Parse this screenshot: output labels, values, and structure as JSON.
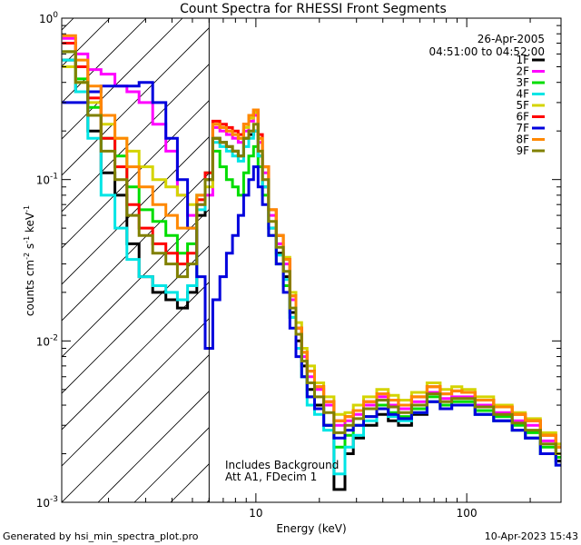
{
  "chart_data": {
    "type": "line",
    "title": "Count Spectra for RHESSI Front Segments",
    "date": "26-Apr-2005",
    "time_range": "04:51:00 to 04:52:00",
    "xlabel": "Energy (keV)",
    "ylabel_base": "counts cm",
    "ylabel_exp1": "-2",
    "ylabel_mid": " s",
    "ylabel_exp2": "-1",
    "ylabel_end": " keV",
    "ylabel_exp3": "-1",
    "x_scale": "log",
    "y_scale": "log",
    "xlim": [
      1.2,
      280
    ],
    "ylim": [
      0.001,
      1
    ],
    "x_tick_labels": [
      {
        "value": 10,
        "label": "10"
      },
      {
        "value": 100,
        "label": "100"
      }
    ],
    "y_tick_labels": [
      {
        "value": 1,
        "base": "10",
        "exp": "0"
      },
      {
        "value": 0.1,
        "base": "10",
        "exp": "-1"
      },
      {
        "value": 0.01,
        "base": "10",
        "exp": "-2"
      },
      {
        "value": 0.001,
        "base": "10",
        "exp": "-3"
      }
    ],
    "attenuator_boundary_keV": 6,
    "annotation_lines": [
      "Includes Background",
      "Att A1, FDecim 1"
    ],
    "legend_position": "top-right",
    "series": [
      {
        "name": "1F",
        "color": "#000000",
        "x": [
          1.3,
          1.5,
          1.7,
          2.0,
          2.3,
          2.6,
          3.0,
          3.5,
          4.0,
          4.5,
          5.0,
          5.5,
          6.0,
          6.5,
          7.0,
          7.5,
          8.0,
          8.5,
          9.0,
          9.5,
          10.0,
          10.5,
          11.0,
          12.0,
          13.0,
          14.0,
          15.0,
          16.0,
          17.0,
          18.0,
          20.0,
          22.0,
          25.0,
          28.0,
          30.0,
          35.0,
          40.0,
          45.0,
          50.0,
          60.0,
          70.0,
          80.0,
          90.0,
          100.0,
          120.0,
          150.0,
          180.0,
          200.0,
          250.0,
          280.0
        ],
        "y": [
          0.55,
          0.35,
          0.2,
          0.11,
          0.08,
          0.04,
          0.025,
          0.02,
          0.018,
          0.016,
          0.02,
          0.06,
          0.1,
          0.18,
          0.17,
          0.16,
          0.15,
          0.14,
          0.18,
          0.19,
          0.2,
          0.14,
          0.09,
          0.05,
          0.035,
          0.025,
          0.015,
          0.01,
          0.007,
          0.005,
          0.004,
          0.003,
          0.0012,
          0.002,
          0.0025,
          0.003,
          0.0035,
          0.0032,
          0.003,
          0.0035,
          0.0042,
          0.0038,
          0.004,
          0.004,
          0.0035,
          0.0032,
          0.0028,
          0.0025,
          0.002,
          0.0018
        ]
      },
      {
        "name": "2F",
        "color": "#ff00ff",
        "x": [
          1.3,
          1.5,
          1.7,
          2.0,
          2.3,
          2.6,
          3.0,
          3.5,
          4.0,
          4.5,
          5.0,
          5.5,
          6.0,
          6.5,
          7.0,
          7.5,
          8.0,
          8.5,
          9.0,
          9.5,
          10.0,
          10.5,
          11.0,
          12.0,
          13.0,
          14.0,
          15.0,
          16.0,
          17.0,
          18.0,
          20.0,
          22.0,
          25.0,
          28.0,
          30.0,
          35.0,
          40.0,
          45.0,
          50.0,
          60.0,
          70.0,
          80.0,
          90.0,
          100.0,
          120.0,
          150.0,
          180.0,
          200.0,
          250.0,
          280.0
        ],
        "y": [
          0.75,
          0.6,
          0.48,
          0.45,
          0.38,
          0.35,
          0.3,
          0.22,
          0.15,
          0.08,
          0.06,
          0.07,
          0.08,
          0.21,
          0.2,
          0.19,
          0.18,
          0.17,
          0.2,
          0.23,
          0.25,
          0.17,
          0.11,
          0.06,
          0.04,
          0.03,
          0.018,
          0.012,
          0.008,
          0.006,
          0.005,
          0.004,
          0.003,
          0.0032,
          0.0035,
          0.004,
          0.0045,
          0.004,
          0.0038,
          0.0042,
          0.0048,
          0.0044,
          0.0045,
          0.0045,
          0.004,
          0.0036,
          0.0032,
          0.003,
          0.0024,
          0.002
        ]
      },
      {
        "name": "3F",
        "color": "#00dd00",
        "x": [
          1.3,
          1.5,
          1.7,
          2.0,
          2.3,
          2.6,
          3.0,
          3.5,
          4.0,
          4.5,
          5.0,
          5.5,
          6.0,
          6.5,
          7.0,
          7.5,
          8.0,
          8.5,
          9.0,
          9.5,
          10.0,
          10.5,
          11.0,
          12.0,
          13.0,
          14.0,
          15.0,
          16.0,
          17.0,
          18.0,
          20.0,
          22.0,
          25.0,
          28.0,
          30.0,
          35.0,
          40.0,
          45.0,
          50.0,
          60.0,
          70.0,
          80.0,
          90.0,
          100.0,
          120.0,
          150.0,
          180.0,
          200.0,
          250.0,
          280.0
        ],
        "y": [
          0.62,
          0.42,
          0.28,
          0.18,
          0.14,
          0.09,
          0.065,
          0.055,
          0.045,
          0.035,
          0.04,
          0.08,
          0.11,
          0.15,
          0.12,
          0.1,
          0.09,
          0.08,
          0.11,
          0.14,
          0.16,
          0.12,
          0.08,
          0.045,
          0.03,
          0.022,
          0.014,
          0.009,
          0.006,
          0.0045,
          0.0038,
          0.003,
          0.0022,
          0.0026,
          0.003,
          0.0034,
          0.004,
          0.0036,
          0.0034,
          0.0038,
          0.0045,
          0.004,
          0.0042,
          0.0042,
          0.0037,
          0.0034,
          0.003,
          0.0027,
          0.0022,
          0.0019
        ]
      },
      {
        "name": "4F",
        "color": "#00e5e5",
        "x": [
          1.3,
          1.5,
          1.7,
          2.0,
          2.3,
          2.6,
          3.0,
          3.5,
          4.0,
          4.5,
          5.0,
          5.5,
          6.0,
          6.5,
          7.0,
          7.5,
          8.0,
          8.5,
          9.0,
          9.5,
          10.0,
          10.5,
          11.0,
          12.0,
          13.0,
          14.0,
          15.0,
          16.0,
          17.0,
          18.0,
          20.0,
          22.0,
          25.0,
          28.0,
          30.0,
          35.0,
          40.0,
          45.0,
          50.0,
          60.0,
          70.0,
          80.0,
          90.0,
          100.0,
          120.0,
          150.0,
          180.0,
          200.0,
          250.0,
          280.0
        ],
        "y": [
          0.55,
          0.35,
          0.18,
          0.08,
          0.05,
          0.032,
          0.025,
          0.022,
          0.02,
          0.018,
          0.022,
          0.065,
          0.1,
          0.17,
          0.16,
          0.15,
          0.14,
          0.13,
          0.16,
          0.18,
          0.2,
          0.14,
          0.09,
          0.05,
          0.034,
          0.024,
          0.014,
          0.009,
          0.006,
          0.004,
          0.0035,
          0.0028,
          0.0015,
          0.0022,
          0.0026,
          0.0032,
          0.0038,
          0.0034,
          0.0032,
          0.0036,
          0.0042,
          0.0038,
          0.004,
          0.004,
          0.0035,
          0.0032,
          0.0028,
          0.0025,
          0.002,
          0.0017
        ]
      },
      {
        "name": "5F",
        "color": "#d4d400",
        "x": [
          1.3,
          1.5,
          1.7,
          2.0,
          2.3,
          2.6,
          3.0,
          3.5,
          4.0,
          4.5,
          5.0,
          5.5,
          6.0,
          6.5,
          7.0,
          7.5,
          8.0,
          8.5,
          9.0,
          9.5,
          10.0,
          10.5,
          11.0,
          12.0,
          13.0,
          14.0,
          15.0,
          16.0,
          17.0,
          18.0,
          20.0,
          22.0,
          25.0,
          28.0,
          30.0,
          35.0,
          40.0,
          45.0,
          50.0,
          60.0,
          70.0,
          80.0,
          90.0,
          100.0,
          120.0,
          150.0,
          180.0,
          200.0,
          250.0,
          280.0
        ],
        "y": [
          0.5,
          0.4,
          0.3,
          0.22,
          0.18,
          0.15,
          0.12,
          0.1,
          0.09,
          0.08,
          0.07,
          0.075,
          0.09,
          0.22,
          0.21,
          0.2,
          0.19,
          0.18,
          0.21,
          0.24,
          0.26,
          0.18,
          0.12,
          0.065,
          0.045,
          0.033,
          0.02,
          0.013,
          0.009,
          0.007,
          0.0055,
          0.0045,
          0.0035,
          0.0036,
          0.004,
          0.0045,
          0.005,
          0.0046,
          0.0043,
          0.0048,
          0.0055,
          0.005,
          0.0052,
          0.005,
          0.0045,
          0.004,
          0.0036,
          0.0033,
          0.0027,
          0.0023
        ]
      },
      {
        "name": "6F",
        "color": "#ff0000",
        "x": [
          1.3,
          1.5,
          1.7,
          2.0,
          2.3,
          2.6,
          3.0,
          3.5,
          4.0,
          4.5,
          5.0,
          5.5,
          6.0,
          6.5,
          7.0,
          7.5,
          8.0,
          8.5,
          9.0,
          9.5,
          10.0,
          10.5,
          11.0,
          12.0,
          13.0,
          14.0,
          15.0,
          16.0,
          17.0,
          18.0,
          20.0,
          22.0,
          25.0,
          28.0,
          30.0,
          35.0,
          40.0,
          45.0,
          50.0,
          60.0,
          70.0,
          80.0,
          90.0,
          100.0,
          120.0,
          150.0,
          180.0,
          200.0,
          250.0,
          280.0
        ],
        "y": [
          0.7,
          0.5,
          0.32,
          0.18,
          0.12,
          0.07,
          0.05,
          0.04,
          0.035,
          0.03,
          0.035,
          0.075,
          0.11,
          0.23,
          0.22,
          0.21,
          0.2,
          0.19,
          0.22,
          0.25,
          0.27,
          0.19,
          0.12,
          0.065,
          0.045,
          0.032,
          0.019,
          0.012,
          0.0085,
          0.0065,
          0.0052,
          0.0042,
          0.0032,
          0.0034,
          0.0037,
          0.0042,
          0.0047,
          0.0043,
          0.004,
          0.0045,
          0.0052,
          0.0047,
          0.0049,
          0.0048,
          0.0043,
          0.0039,
          0.0035,
          0.0032,
          0.0026,
          0.0022
        ]
      },
      {
        "name": "7F",
        "color": "#0000dd",
        "x": [
          1.3,
          1.5,
          1.7,
          2.0,
          2.3,
          2.6,
          3.0,
          3.5,
          4.0,
          4.5,
          5.0,
          5.5,
          6.0,
          6.5,
          7.0,
          7.5,
          8.0,
          8.5,
          9.0,
          9.5,
          10.0,
          10.5,
          11.0,
          12.0,
          13.0,
          14.0,
          15.0,
          16.0,
          17.0,
          18.0,
          20.0,
          22.0,
          25.0,
          28.0,
          30.0,
          35.0,
          40.0,
          45.0,
          50.0,
          60.0,
          70.0,
          80.0,
          90.0,
          100.0,
          120.0,
          150.0,
          180.0,
          200.0,
          250.0,
          280.0
        ],
        "y": [
          0.3,
          0.3,
          0.35,
          0.38,
          0.38,
          0.38,
          0.4,
          0.3,
          0.18,
          0.1,
          0.05,
          0.025,
          0.009,
          0.018,
          0.025,
          0.035,
          0.045,
          0.06,
          0.08,
          0.1,
          0.12,
          0.09,
          0.07,
          0.045,
          0.03,
          0.02,
          0.012,
          0.008,
          0.006,
          0.0045,
          0.0038,
          0.003,
          0.0025,
          0.0028,
          0.003,
          0.0034,
          0.0038,
          0.0035,
          0.0033,
          0.0036,
          0.0042,
          0.0038,
          0.004,
          0.004,
          0.0035,
          0.0032,
          0.0028,
          0.0025,
          0.002,
          0.0017
        ]
      },
      {
        "name": "8F",
        "color": "#ff8800",
        "x": [
          1.3,
          1.5,
          1.7,
          2.0,
          2.3,
          2.6,
          3.0,
          3.5,
          4.0,
          4.5,
          5.0,
          5.5,
          6.0,
          6.5,
          7.0,
          7.5,
          8.0,
          8.5,
          9.0,
          9.5,
          10.0,
          10.5,
          11.0,
          12.0,
          13.0,
          14.0,
          15.0,
          16.0,
          17.0,
          18.0,
          20.0,
          22.0,
          25.0,
          28.0,
          30.0,
          35.0,
          40.0,
          45.0,
          50.0,
          60.0,
          70.0,
          80.0,
          90.0,
          100.0,
          120.0,
          150.0,
          180.0,
          200.0,
          250.0,
          280.0
        ],
        "y": [
          0.78,
          0.55,
          0.38,
          0.25,
          0.18,
          0.12,
          0.09,
          0.07,
          0.06,
          0.05,
          0.05,
          0.08,
          0.1,
          0.22,
          0.21,
          0.2,
          0.19,
          0.18,
          0.22,
          0.25,
          0.27,
          0.18,
          0.12,
          0.065,
          0.045,
          0.032,
          0.019,
          0.012,
          0.0085,
          0.0065,
          0.0052,
          0.0042,
          0.0032,
          0.0034,
          0.0037,
          0.0042,
          0.0047,
          0.0043,
          0.004,
          0.0045,
          0.0052,
          0.0047,
          0.0049,
          0.0048,
          0.0043,
          0.0039,
          0.0035,
          0.0032,
          0.0026,
          0.0022
        ]
      },
      {
        "name": "9F",
        "color": "#808000",
        "x": [
          1.3,
          1.5,
          1.7,
          2.0,
          2.3,
          2.6,
          3.0,
          3.5,
          4.0,
          4.5,
          5.0,
          5.5,
          6.0,
          6.5,
          7.0,
          7.5,
          8.0,
          8.5,
          9.0,
          9.5,
          10.0,
          10.5,
          11.0,
          12.0,
          13.0,
          14.0,
          15.0,
          16.0,
          17.0,
          18.0,
          20.0,
          22.0,
          25.0,
          28.0,
          30.0,
          35.0,
          40.0,
          45.0,
          50.0,
          60.0,
          70.0,
          80.0,
          90.0,
          100.0,
          120.0,
          150.0,
          180.0,
          200.0,
          250.0,
          280.0
        ],
        "y": [
          0.62,
          0.4,
          0.25,
          0.15,
          0.1,
          0.06,
          0.045,
          0.035,
          0.03,
          0.025,
          0.03,
          0.07,
          0.1,
          0.18,
          0.17,
          0.16,
          0.15,
          0.14,
          0.18,
          0.2,
          0.22,
          0.15,
          0.1,
          0.055,
          0.038,
          0.027,
          0.016,
          0.011,
          0.0075,
          0.0055,
          0.0045,
          0.0036,
          0.0027,
          0.003,
          0.0033,
          0.0038,
          0.0043,
          0.0039,
          0.0036,
          0.004,
          0.0047,
          0.0042,
          0.0044,
          0.0044,
          0.0039,
          0.0035,
          0.0031,
          0.0028,
          0.0023,
          0.002
        ]
      }
    ]
  },
  "footer": {
    "generated_by": "Generated by hsi_min_spectra_plot.pro",
    "timestamp": "10-Apr-2023 15:43"
  }
}
